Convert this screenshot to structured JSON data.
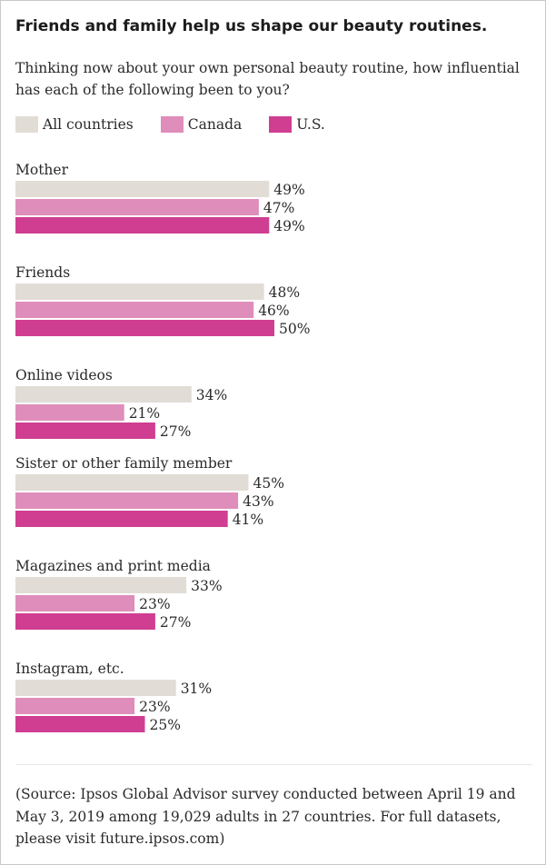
{
  "chart_data": {
    "type": "bar",
    "orientation": "horizontal",
    "title": "Friends and family help us shape our beauty routines.",
    "subtitle": "Thinking now about your own personal beauty routine, how influential has each of the following been to you?",
    "categories": [
      "Mother",
      "Friends",
      "Online videos",
      "Sister or other family member",
      "Magazines and print media",
      "Instagram, etc."
    ],
    "series": [
      {
        "name": "All countries",
        "color": "#e1ddd6",
        "values": [
          49,
          48,
          34,
          45,
          33,
          31
        ]
      },
      {
        "name": "Canada",
        "color": "#df8dbb",
        "values": [
          47,
          46,
          21,
          43,
          23,
          23
        ]
      },
      {
        "name": "U.S.",
        "color": "#d03e92",
        "values": [
          49,
          50,
          27,
          41,
          27,
          25
        ]
      }
    ],
    "value_suffix": "%",
    "legend": "top-left",
    "grid": false
  },
  "source": "(Source: Ipsos Global Advisor survey conducted between April 19 and May 3, 2019 among 19,029 adults in 27 countries. For full datasets, please visit future.ipsos.com)"
}
